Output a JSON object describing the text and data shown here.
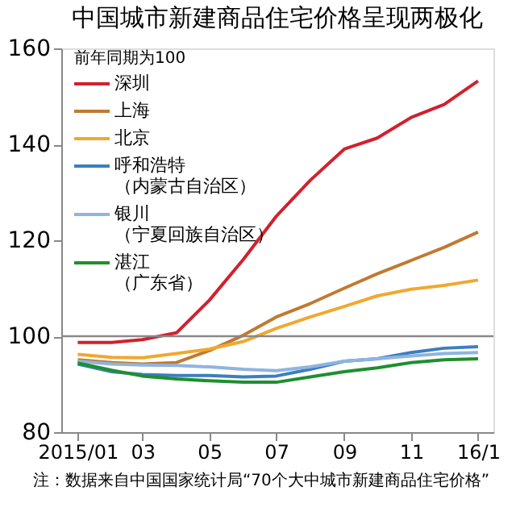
{
  "chart_data": {
    "type": "line",
    "title": "中国城市新建商品住宅价格呈现两极化",
    "ylabel": "前年同期为100",
    "x": [
      "2015-01",
      "2015-02",
      "2015-03",
      "2015-04",
      "2015-05",
      "2015-06",
      "2015-07",
      "2015-08",
      "2015-09",
      "2015-10",
      "2015-11",
      "2015-12",
      "2016-01"
    ],
    "xlim": [
      "2014-12-17",
      "2016-01-15"
    ],
    "xticks": [
      {
        "value": "2015-01",
        "label": "2015/01"
      },
      {
        "value": "2015-03",
        "label": "03"
      },
      {
        "value": "2015-05",
        "label": "05"
      },
      {
        "value": "2015-07",
        "label": "07"
      },
      {
        "value": "2015-09",
        "label": "09"
      },
      {
        "value": "2015-11",
        "label": "11"
      },
      {
        "value": "2016-01",
        "label": "16/1"
      }
    ],
    "ylim": [
      80,
      160
    ],
    "yticks": [
      80,
      100,
      120,
      140,
      160
    ],
    "series": [
      {
        "name": "深圳",
        "color": "#d2202f",
        "values": [
          98.7,
          98.7,
          99.3,
          100.7,
          107.5,
          116,
          125,
          132.5,
          139,
          141.3,
          145.6,
          148.3,
          153.2
        ]
      },
      {
        "name": "上海",
        "color": "#c07a30",
        "values": [
          95.1,
          94.5,
          94.2,
          94.5,
          97,
          100.2,
          104,
          106.8,
          110,
          113,
          115.8,
          118.5,
          121.7
        ]
      },
      {
        "name": "北京",
        "color": "#f0a830",
        "values": [
          96.2,
          95.6,
          95.5,
          96.4,
          97.3,
          98.9,
          101.6,
          104,
          106.2,
          108.4,
          109.8,
          110.6,
          111.7
        ]
      },
      {
        "name": "呼和浩特（内蒙古自治区）",
        "color": "#3b7fbf",
        "values": [
          94.2,
          92.6,
          92,
          91.8,
          91.8,
          91.5,
          91.7,
          93.1,
          94.8,
          95.3,
          96.6,
          97.5,
          97.8
        ]
      },
      {
        "name": "银川（宁夏回族自治区）",
        "color": "#8fb4e0",
        "values": [
          94.8,
          94.2,
          94,
          93.9,
          93.6,
          93.1,
          92.8,
          93.6,
          94.8,
          95.3,
          95.9,
          96.4,
          96.6
        ]
      },
      {
        "name": "湛江（广东省）",
        "color": "#1f8f2f",
        "values": [
          94.4,
          92.9,
          91.7,
          91.1,
          90.7,
          90.4,
          90.4,
          91.5,
          92.6,
          93.4,
          94.5,
          95.1,
          95.3
        ]
      }
    ],
    "ref_lines": [
      {
        "axis": "y",
        "value": 100,
        "color": "#888888"
      }
    ],
    "legend": "top left",
    "grid": false,
    "line_style": "solid",
    "marker": "none",
    "annotations": [
      "注：数据来自中国国家统计局“70个大中城市新建商品住宅价格”"
    ]
  }
}
